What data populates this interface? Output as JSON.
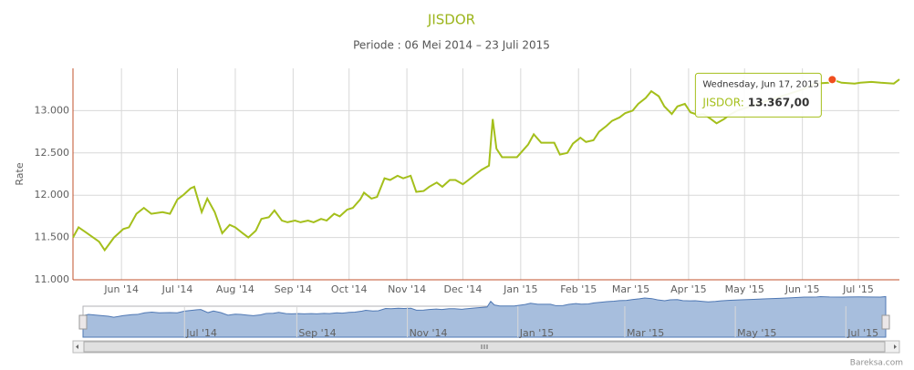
{
  "chart_data": {
    "type": "line",
    "title": "JISDOR",
    "subtitle": "Periode : 06 Mei 2014 – 23 Juli 2015",
    "y_label": "Rate",
    "credit": "Bareksa.com",
    "grid": true,
    "xlim": [
      "2014-05-06",
      "2015-07-23"
    ],
    "ylim": [
      11000,
      13500
    ],
    "yticks": [
      {
        "value": 11000,
        "label": "11.000"
      },
      {
        "value": 11500,
        "label": "11.500"
      },
      {
        "value": 12000,
        "label": "12.000"
      },
      {
        "value": 12500,
        "label": "12.500"
      },
      {
        "value": 13000,
        "label": "13.000"
      }
    ],
    "xticks": [
      {
        "value": "2014-06-01",
        "label": "Jun '14"
      },
      {
        "value": "2014-07-01",
        "label": "Jul '14"
      },
      {
        "value": "2014-08-01",
        "label": "Aug '14"
      },
      {
        "value": "2014-09-01",
        "label": "Sep '14"
      },
      {
        "value": "2014-10-01",
        "label": "Oct '14"
      },
      {
        "value": "2014-11-01",
        "label": "Nov '14"
      },
      {
        "value": "2014-12-01",
        "label": "Dec '14"
      },
      {
        "value": "2015-01-01",
        "label": "Jan '15"
      },
      {
        "value": "2015-02-01",
        "label": "Feb '15"
      },
      {
        "value": "2015-03-01",
        "label": "Mar '15"
      },
      {
        "value": "2015-04-01",
        "label": "Apr '15"
      },
      {
        "value": "2015-05-01",
        "label": "May '15"
      },
      {
        "value": "2015-06-01",
        "label": "Jun '15"
      },
      {
        "value": "2015-07-01",
        "label": "Jul '15"
      }
    ],
    "navigator_xticks": [
      {
        "value": "2014-07-01",
        "label": "Jul '14"
      },
      {
        "value": "2014-09-01",
        "label": "Sep '14"
      },
      {
        "value": "2014-11-01",
        "label": "Nov '14"
      },
      {
        "value": "2015-01-01",
        "label": "Jan '15"
      },
      {
        "value": "2015-03-01",
        "label": "Mar '15"
      },
      {
        "value": "2015-05-01",
        "label": "May '15"
      },
      {
        "value": "2015-07-01",
        "label": "Jul '15"
      }
    ],
    "x": [
      "2014-05-06",
      "2014-05-09",
      "2014-05-13",
      "2014-05-20",
      "2014-05-23",
      "2014-05-28",
      "2014-06-02",
      "2014-06-05",
      "2014-06-09",
      "2014-06-13",
      "2014-06-17",
      "2014-06-23",
      "2014-06-27",
      "2014-07-01",
      "2014-07-04",
      "2014-07-08",
      "2014-07-10",
      "2014-07-14",
      "2014-07-17",
      "2014-07-21",
      "2014-07-25",
      "2014-07-29",
      "2014-08-01",
      "2014-08-05",
      "2014-08-08",
      "2014-08-12",
      "2014-08-15",
      "2014-08-19",
      "2014-08-22",
      "2014-08-26",
      "2014-08-29",
      "2014-09-02",
      "2014-09-05",
      "2014-09-09",
      "2014-09-12",
      "2014-09-16",
      "2014-09-19",
      "2014-09-23",
      "2014-09-26",
      "2014-09-30",
      "2014-10-03",
      "2014-10-07",
      "2014-10-09",
      "2014-10-13",
      "2014-10-16",
      "2014-10-20",
      "2014-10-23",
      "2014-10-27",
      "2014-10-30",
      "2014-11-03",
      "2014-11-06",
      "2014-11-10",
      "2014-11-13",
      "2014-11-17",
      "2014-11-20",
      "2014-11-24",
      "2014-11-27",
      "2014-12-01",
      "2014-12-04",
      "2014-12-08",
      "2014-12-11",
      "2014-12-15",
      "2014-12-17",
      "2014-12-19",
      "2014-12-22",
      "2014-12-26",
      "2014-12-30",
      "2015-01-05",
      "2015-01-08",
      "2015-01-12",
      "2015-01-15",
      "2015-01-19",
      "2015-01-22",
      "2015-01-26",
      "2015-01-29",
      "2015-02-02",
      "2015-02-05",
      "2015-02-09",
      "2015-02-12",
      "2015-02-16",
      "2015-02-19",
      "2015-02-23",
      "2015-02-26",
      "2015-03-02",
      "2015-03-05",
      "2015-03-09",
      "2015-03-12",
      "2015-03-16",
      "2015-03-19",
      "2015-03-23",
      "2015-03-26",
      "2015-03-30",
      "2015-04-02",
      "2015-04-06",
      "2015-04-09",
      "2015-04-13",
      "2015-04-16",
      "2015-04-20",
      "2015-04-23",
      "2015-04-27",
      "2015-05-04",
      "2015-05-11",
      "2015-05-18",
      "2015-05-25",
      "2015-06-01",
      "2015-06-08",
      "2015-06-15",
      "2015-06-17",
      "2015-06-22",
      "2015-06-29",
      "2015-07-02",
      "2015-07-08",
      "2015-07-13",
      "2015-07-20",
      "2015-07-23"
    ],
    "series": [
      {
        "name": "JISDOR",
        "color": "#a4bf1b",
        "values": [
          11500,
          11620,
          11560,
          11450,
          11350,
          11500,
          11600,
          11620,
          11780,
          11850,
          11780,
          11800,
          11780,
          11950,
          12000,
          12080,
          12100,
          11800,
          11960,
          11800,
          11550,
          11650,
          11620,
          11550,
          11500,
          11580,
          11720,
          11740,
          11820,
          11700,
          11680,
          11700,
          11680,
          11700,
          11680,
          11720,
          11700,
          11780,
          11750,
          11830,
          11850,
          11950,
          12030,
          11960,
          11980,
          12200,
          12180,
          12230,
          12200,
          12230,
          12040,
          12050,
          12100,
          12150,
          12100,
          12180,
          12180,
          12130,
          12180,
          12250,
          12300,
          12350,
          12900,
          12550,
          12450,
          12450,
          12450,
          12600,
          12720,
          12620,
          12620,
          12620,
          12480,
          12500,
          12610,
          12680,
          12630,
          12650,
          12750,
          12820,
          12880,
          12920,
          12970,
          13000,
          13080,
          13150,
          13230,
          13170,
          13050,
          12960,
          13050,
          13080,
          12980,
          12950,
          12960,
          12900,
          12850,
          12900,
          12950,
          13000,
          13050,
          13100,
          13150,
          13200,
          13250,
          13320,
          13330,
          13367,
          13330,
          13320,
          13330,
          13340,
          13330,
          13320,
          13370
        ]
      }
    ],
    "tooltip": {
      "header": "Wednesday, Jun 17, 2015",
      "label": "JISDOR:",
      "value": 13367,
      "value_label": "13.367,00",
      "point": 107
    }
  }
}
